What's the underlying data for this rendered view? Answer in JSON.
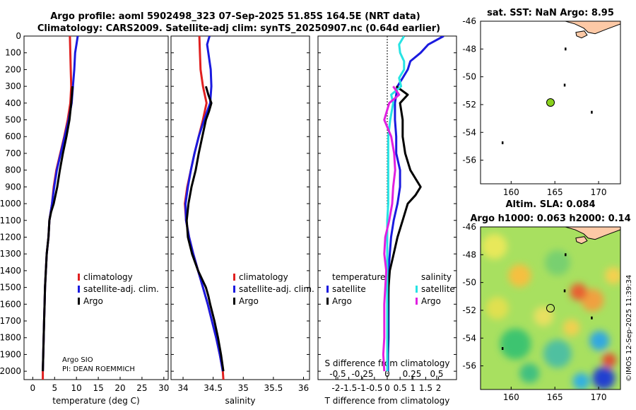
{
  "title": {
    "line1": "Argo profile: aoml 5902498_323 07-Sep-2025 51.85S 164.5E (NRT data)",
    "line2": "Climatology: CARS2009. Satellite-adj clim: synTS_20250907.nc (0.64d earlier)"
  },
  "colors": {
    "red": "#e02020",
    "blue": "#1a1adf",
    "black": "#000000",
    "cyan": "#27e3e3",
    "magenta": "#e020e0",
    "land": "#fdc9a6",
    "mapdot": "#8ad11d"
  },
  "chart_data": [
    {
      "id": "temperature",
      "type": "line",
      "xlabel": "temperature (deg C)",
      "ylabel": "",
      "xlim": [
        -2,
        31
      ],
      "ylim": [
        2050,
        0
      ],
      "xticks": [
        "0",
        "5",
        "10",
        "15",
        "20",
        "25",
        "30"
      ],
      "yticks": [
        "0",
        "100",
        "200",
        "300",
        "400",
        "500",
        "600",
        "700",
        "800",
        "900",
        "1000",
        "1100",
        "1200",
        "1300",
        "1400",
        "1500",
        "1600",
        "1700",
        "1800",
        "1900",
        "2000"
      ],
      "legend": [
        "climatology",
        "satellite-adj. clim.",
        "Argo"
      ],
      "annotation": [
        "Argo SIO",
        "PI: DEAN ROEMMICH"
      ],
      "series": [
        {
          "name": "climatology",
          "color": "red",
          "p": [
            0,
            100,
            200,
            300,
            400,
            500,
            600,
            700,
            800,
            900,
            1000,
            1100,
            1200,
            1300,
            1400,
            1500,
            1600,
            1700,
            1800,
            1900,
            2000,
            2050
          ],
          "v": [
            8.5,
            8.6,
            8.7,
            8.8,
            8.6,
            8.0,
            7.2,
            6.3,
            5.4,
            4.8,
            4.4,
            3.8,
            3.6,
            3.2,
            3.0,
            2.8,
            2.7,
            2.6,
            2.5,
            2.4,
            2.3,
            2.3
          ]
        },
        {
          "name": "satellite-adj. clim.",
          "color": "blue",
          "p": [
            0,
            50,
            100,
            200,
            300,
            400,
            500,
            600,
            700,
            800,
            900,
            1000,
            1100,
            1200,
            1300,
            1400,
            1500,
            1600,
            1700,
            1800,
            1900,
            2000
          ],
          "v": [
            10.3,
            10.0,
            9.7,
            9.5,
            9.2,
            8.9,
            8.2,
            7.3,
            6.4,
            5.5,
            4.9,
            4.4,
            3.8,
            3.6,
            3.2,
            3.0,
            2.8,
            2.7,
            2.6,
            2.5,
            2.4,
            2.3
          ]
        },
        {
          "name": "Argo",
          "color": "black",
          "p": [
            300,
            400,
            500,
            600,
            700,
            800,
            900,
            1000,
            1050,
            1100,
            1200,
            1300,
            1400,
            1500,
            1600,
            1700,
            1800,
            1900,
            2000
          ],
          "v": [
            9.1,
            8.8,
            8.4,
            7.7,
            6.9,
            6.2,
            5.6,
            4.8,
            4.2,
            3.8,
            3.6,
            3.2,
            3.0,
            2.8,
            2.7,
            2.6,
            2.5,
            2.4,
            2.3
          ]
        }
      ]
    },
    {
      "id": "salinity",
      "type": "line",
      "xlabel": "salinity",
      "ylabel": "",
      "xlim": [
        33.8,
        36.1
      ],
      "ylim": [
        2050,
        0
      ],
      "xticks": [
        "34",
        "34.5",
        "35",
        "35.5",
        "36"
      ],
      "legend": [
        "climatology",
        "satellite-adj. clim.",
        "Argo"
      ],
      "series": [
        {
          "name": "climatology",
          "color": "red",
          "p": [
            0,
            100,
            200,
            300,
            400,
            500,
            600,
            700,
            800,
            900,
            1000,
            1100,
            1200,
            1300,
            1400,
            1500,
            1600,
            1700,
            1800,
            1900,
            2000,
            2050
          ],
          "v": [
            34.27,
            34.28,
            34.29,
            34.33,
            34.39,
            34.33,
            34.26,
            34.19,
            34.13,
            34.07,
            34.03,
            34.05,
            34.1,
            34.17,
            34.25,
            34.33,
            34.41,
            34.48,
            34.55,
            34.61,
            34.66,
            34.67
          ]
        },
        {
          "name": "satellite-adj. clim.",
          "color": "blue",
          "p": [
            0,
            50,
            100,
            200,
            300,
            400,
            500,
            600,
            700,
            800,
            900,
            1000,
            1100,
            1200,
            1300,
            1400,
            1500,
            1600,
            1700,
            1800,
            1900,
            2000
          ],
          "v": [
            34.44,
            34.4,
            34.42,
            34.46,
            34.47,
            34.45,
            34.35,
            34.26,
            34.19,
            34.13,
            34.08,
            34.04,
            34.05,
            34.1,
            34.17,
            34.25,
            34.33,
            34.41,
            34.48,
            34.55,
            34.61,
            34.66
          ]
        },
        {
          "name": "Argo",
          "color": "black",
          "p": [
            300,
            350,
            400,
            450,
            500,
            600,
            700,
            800,
            900,
            1000,
            1100,
            1200,
            1300,
            1400,
            1500,
            1550,
            1600,
            1700,
            1800,
            1900,
            2000
          ],
          "v": [
            34.38,
            34.42,
            34.47,
            34.43,
            34.38,
            34.32,
            34.26,
            34.21,
            34.14,
            34.09,
            34.06,
            34.08,
            34.15,
            34.25,
            34.38,
            34.42,
            34.45,
            34.52,
            34.58,
            34.63,
            34.67
          ]
        }
      ]
    },
    {
      "id": "difference",
      "type": "line",
      "xlabel": "T difference from climatology",
      "x2label": "S difference from climatology",
      "ylabel": "",
      "xlim": [
        -2.7,
        2.7
      ],
      "x2lim": [
        -0.7,
        0.7
      ],
      "ylim": [
        2050,
        0
      ],
      "xticks": [
        "-2",
        "-1.5",
        "-1",
        "-0.5",
        "0",
        "0.5",
        "1",
        "1.5",
        "2"
      ],
      "x2ticks": [
        "-0.5",
        "-0.25",
        "0",
        "0.25",
        "0.5"
      ],
      "legend_left_title": "temperature",
      "legend_right_title": "salinity",
      "legend": [
        "satellite",
        "Argo",
        "satellite",
        "Argo"
      ],
      "series": [
        {
          "name": "T satellite",
          "color": "blue",
          "scale": "T",
          "p": [
            0,
            50,
            100,
            150,
            200,
            250,
            300,
            400,
            500,
            600,
            700,
            800,
            900,
            1000,
            1100,
            1200,
            1300,
            1400,
            1500,
            1600,
            1700,
            1800,
            1900,
            2000
          ],
          "v": [
            2.2,
            1.6,
            1.3,
            0.9,
            0.8,
            0.6,
            0.4,
            0.3,
            0.3,
            0.35,
            0.35,
            0.5,
            0.5,
            0.4,
            0.25,
            0.15,
            0.1,
            0.05,
            0.05,
            0.05,
            0.05,
            0.05,
            0.03,
            0.03
          ]
        },
        {
          "name": "T Argo",
          "color": "black",
          "scale": "T",
          "p": [
            300,
            350,
            400,
            500,
            600,
            700,
            800,
            850,
            900,
            950,
            1000,
            1100,
            1200,
            1300,
            1400,
            1500,
            1600,
            1700,
            1800,
            1900,
            2000
          ],
          "v": [
            0.35,
            0.8,
            0.5,
            0.6,
            0.6,
            0.7,
            0.9,
            1.1,
            1.3,
            1.1,
            0.8,
            0.6,
            0.4,
            0.25,
            0.1,
            0.05,
            0.03,
            0.02,
            0.02,
            0.01,
            0.0
          ]
        },
        {
          "name": "S satellite",
          "color": "cyan",
          "scale": "S",
          "p": [
            0,
            50,
            100,
            150,
            200,
            250,
            300,
            350,
            400,
            500,
            600,
            700,
            800,
            900,
            1000,
            1100,
            1200,
            1300,
            1400,
            1500,
            1600,
            1700,
            1800,
            1900,
            2000
          ],
          "v": [
            0.17,
            0.12,
            0.13,
            0.17,
            0.17,
            0.12,
            0.14,
            0.04,
            0.06,
            0.03,
            0.01,
            0.01,
            0.01,
            0.01,
            0.01,
            0.0,
            0.0,
            0.0,
            0.0,
            0.0,
            0.0,
            0.0,
            0.0,
            0.0,
            0.0
          ]
        },
        {
          "name": "S Argo",
          "color": "magenta",
          "scale": "S",
          "p": [
            300,
            350,
            400,
            500,
            600,
            700,
            800,
            900,
            1000,
            1100,
            1200,
            1300,
            1400,
            1500,
            1600,
            1700,
            1800,
            1900,
            2000
          ],
          "v": [
            0.06,
            0.12,
            0.02,
            -0.03,
            0.04,
            0.07,
            0.08,
            0.06,
            0.05,
            0.02,
            -0.02,
            -0.03,
            -0.01,
            -0.02,
            -0.03,
            -0.03,
            -0.03,
            -0.04,
            -0.03
          ]
        }
      ]
    },
    {
      "id": "sst_map",
      "type": "heatmap",
      "title": "sat. SST: NaN Argo: 8.95",
      "xlim": [
        156.5,
        172.5
      ],
      "ylim": [
        -57.7,
        -46
      ],
      "xticks": [
        "160",
        "165",
        "170"
      ],
      "yticks": [
        "-46",
        "-48",
        "-50",
        "-52",
        "-54",
        "-56"
      ],
      "argo_position": {
        "lon": 164.5,
        "lat": -51.85
      }
    },
    {
      "id": "sla_map",
      "type": "heatmap",
      "title": "Altim. SLA: 0.084",
      "subtitle": "Argo h1000: 0.063 h2000: 0.14",
      "xlim": [
        156.5,
        172.5
      ],
      "ylim": [
        -57.7,
        -46
      ],
      "xticks": [
        "160",
        "165",
        "170"
      ],
      "yticks": [
        "-46",
        "-48",
        "-50",
        "-52",
        "-54",
        "-56"
      ],
      "argo_position": {
        "lon": 164.5,
        "lat": -51.85
      }
    }
  ],
  "watermark": "©IMOS 12-Sep-2025 11:39:34"
}
